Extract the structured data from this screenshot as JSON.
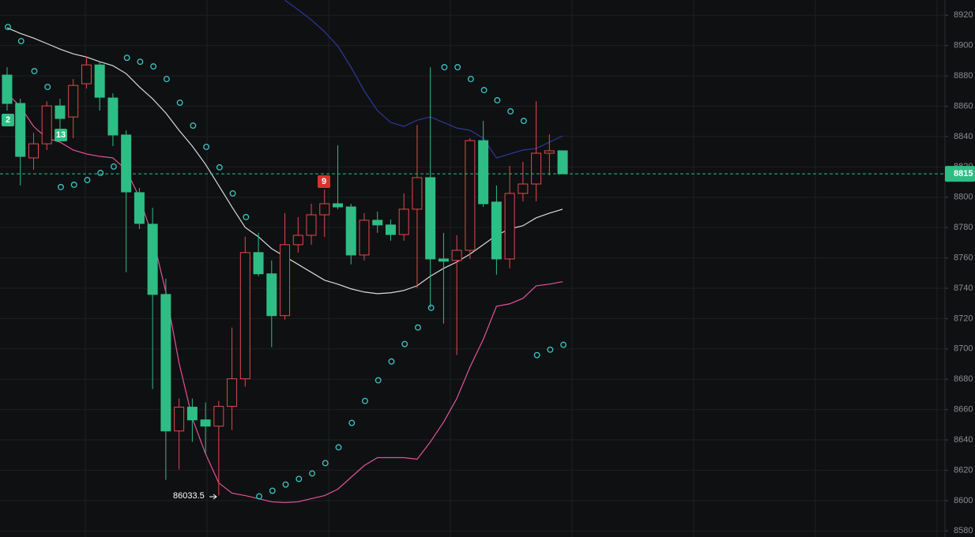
{
  "chart_data": {
    "type": "candlestick",
    "ylim": [
      8576,
      8930
    ],
    "yticks": [
      8580,
      8600,
      8620,
      8640,
      8660,
      8680,
      8700,
      8720,
      8740,
      8760,
      8780,
      8800,
      8820,
      8840,
      8860,
      8880,
      8900,
      8920
    ],
    "grid": true,
    "up_color": "#e04b4b",
    "down_color": "#2ebd85",
    "candles": {
      "open": [
        8880.5,
        8861.8,
        8825.9,
        8835.2,
        8860.2,
        8852.9,
        8874.8,
        8887.2,
        8865.4,
        8841.0,
        8803.0,
        8782.2,
        8735.9,
        8645.9,
        8661.6,
        8653.2,
        8649.1,
        8662.1,
        8680.3,
        8763.5,
        8749.5,
        8721.9,
        8768.7,
        8774.9,
        8788.4,
        8795.7,
        8793.6,
        8761.9,
        8784.8,
        8781.7,
        8775.4,
        8792.1,
        8812.9,
        8759.3,
        8758.3,
        8765.0,
        8837.3,
        8796.8,
        8759.3,
        8802.5,
        8808.7,
        8829.0,
        8830.6
      ],
      "high": [
        8885.7,
        8864.9,
        8842.5,
        8863.3,
        8864.9,
        8877.9,
        8892.5,
        8889.3,
        8868.5,
        8844.1,
        8806.1,
        8793.1,
        8746.3,
        8667.3,
        8667.3,
        8664.7,
        8665.7,
        8714.1,
        8773.9,
        8776.5,
        8758.3,
        8789.5,
        8786.9,
        8795.7,
        8805.1,
        8834.2,
        8795.7,
        8789.5,
        8790.5,
        8785.3,
        8802.5,
        8847.7,
        8885.7,
        8776.5,
        8774.9,
        8838.9,
        8850.3,
        8807.7,
        8820.7,
        8823.3,
        8863.3,
        8841.5,
        8830.6
      ],
      "low": [
        8857.1,
        8807.7,
        8818.1,
        8831.1,
        8844.1,
        8838.9,
        8871.6,
        8857.1,
        8833.7,
        8750.5,
        8779.1,
        8673.5,
        8613.7,
        8620.5,
        8638.7,
        8630.9,
        8603.4,
        8646.5,
        8675.1,
        8747.9,
        8701.1,
        8719.3,
        8763.5,
        8768.7,
        8773.9,
        8792.1,
        8755.7,
        8758.3,
        8776.5,
        8771.3,
        8771.3,
        8740.1,
        8727.1,
        8716.7,
        8695.9,
        8759.3,
        8793.6,
        8748.9,
        8753.1,
        8797.3,
        8797.3,
        8814.4,
        8815.4
      ],
      "close": [
        8861.8,
        8826.9,
        8835.2,
        8860.2,
        8851.9,
        8873.7,
        8887.2,
        8865.9,
        8841.0,
        8803.5,
        8782.7,
        8735.9,
        8645.9,
        8661.6,
        8653.2,
        8649.1,
        8662.1,
        8680.3,
        8763.5,
        8749.5,
        8721.9,
        8768.7,
        8774.9,
        8788.4,
        8795.7,
        8793.6,
        8761.9,
        8784.8,
        8781.7,
        8775.4,
        8792.1,
        8812.9,
        8759.3,
        8757.8,
        8765.0,
        8837.3,
        8795.7,
        8759.3,
        8802.5,
        8808.7,
        8829.0,
        8830.6,
        8815.4
      ]
    },
    "lines": [
      {
        "color": "#d9d9d9",
        "values": [
          8911.7,
          8908.0,
          8904.9,
          8901.3,
          8897.6,
          8894.5,
          8892.4,
          8889.3,
          8886.7,
          8881.5,
          8872.7,
          8864.9,
          8855.5,
          8844.1,
          8833.7,
          8821.7,
          8807.7,
          8793.6,
          8780.1,
          8773.9,
          8766.1,
          8760.9,
          8755.7,
          8750.5,
          8745.3,
          8742.7,
          8739.6,
          8737.5,
          8736.4,
          8737.0,
          8738.5,
          8741.6,
          8747.9,
          8753.1,
          8757.3,
          8762.5,
          8768.7,
          8774.9,
          8779.1,
          8781.2,
          8786.4,
          8789.5,
          8792.1
        ]
      },
      {
        "color": "#2f3a9c",
        "values": [
          null,
          null,
          null,
          null,
          null,
          null,
          null,
          null,
          null,
          null,
          null,
          null,
          null,
          null,
          null,
          null,
          null,
          null,
          null,
          null,
          null,
          8929.9,
          8923.6,
          8916.9,
          8909.1,
          8899.7,
          8885.7,
          8870.1,
          8857.1,
          8849.3,
          8846.7,
          8850.8,
          8852.9,
          8849.3,
          8845.6,
          8844.1,
          8838.9,
          8825.9,
          8828.5,
          8831.1,
          8832.1,
          8836.3,
          8840.4
        ]
      },
      {
        "color": "#e0559a",
        "values": [
          8868.5,
          8859.7,
          8846.7,
          8838.9,
          8836.3,
          8831.1,
          8828.5,
          8826.9,
          8825.9,
          8818.1,
          8799.9,
          8773.9,
          8737.5,
          8690.7,
          8654.3,
          8630.9,
          8611.7,
          8604.9,
          8603.3,
          8601.3,
          8599.2,
          8598.7,
          8599.2,
          8601.3,
          8603.3,
          8607.5,
          8615.3,
          8623.1,
          8628.3,
          8628.3,
          8628.3,
          8627.3,
          8638.7,
          8651.7,
          8667.3,
          8688.1,
          8706.3,
          8728.1,
          8729.7,
          8733.3,
          8741.6,
          8742.7,
          8744.3
        ]
      }
    ],
    "sar": {
      "color": "#3cc7c4",
      "values": [
        8912.2,
        8902.9,
        8883.1,
        8872.7,
        8806.7,
        8808.2,
        8811.3,
        8816.0,
        8820.2,
        8891.9,
        8889.3,
        8886.2,
        8877.9,
        8862.3,
        8847.2,
        8833.2,
        8819.7,
        8802.5,
        8786.9,
        8602.8,
        8606.5,
        8610.6,
        8614.3,
        8617.9,
        8624.7,
        8635.1,
        8651.2,
        8665.7,
        8679.3,
        8691.7,
        8703.2,
        8714.1,
        8727.1,
        8885.7,
        8885.7,
        8877.9,
        8870.6,
        8863.9,
        8856.6,
        8850.3,
        8695.9,
        8699.5,
        8702.7
      ]
    },
    "price_label": "8815",
    "annotations": [
      "2",
      "13",
      "9",
      "86033.5"
    ]
  }
}
